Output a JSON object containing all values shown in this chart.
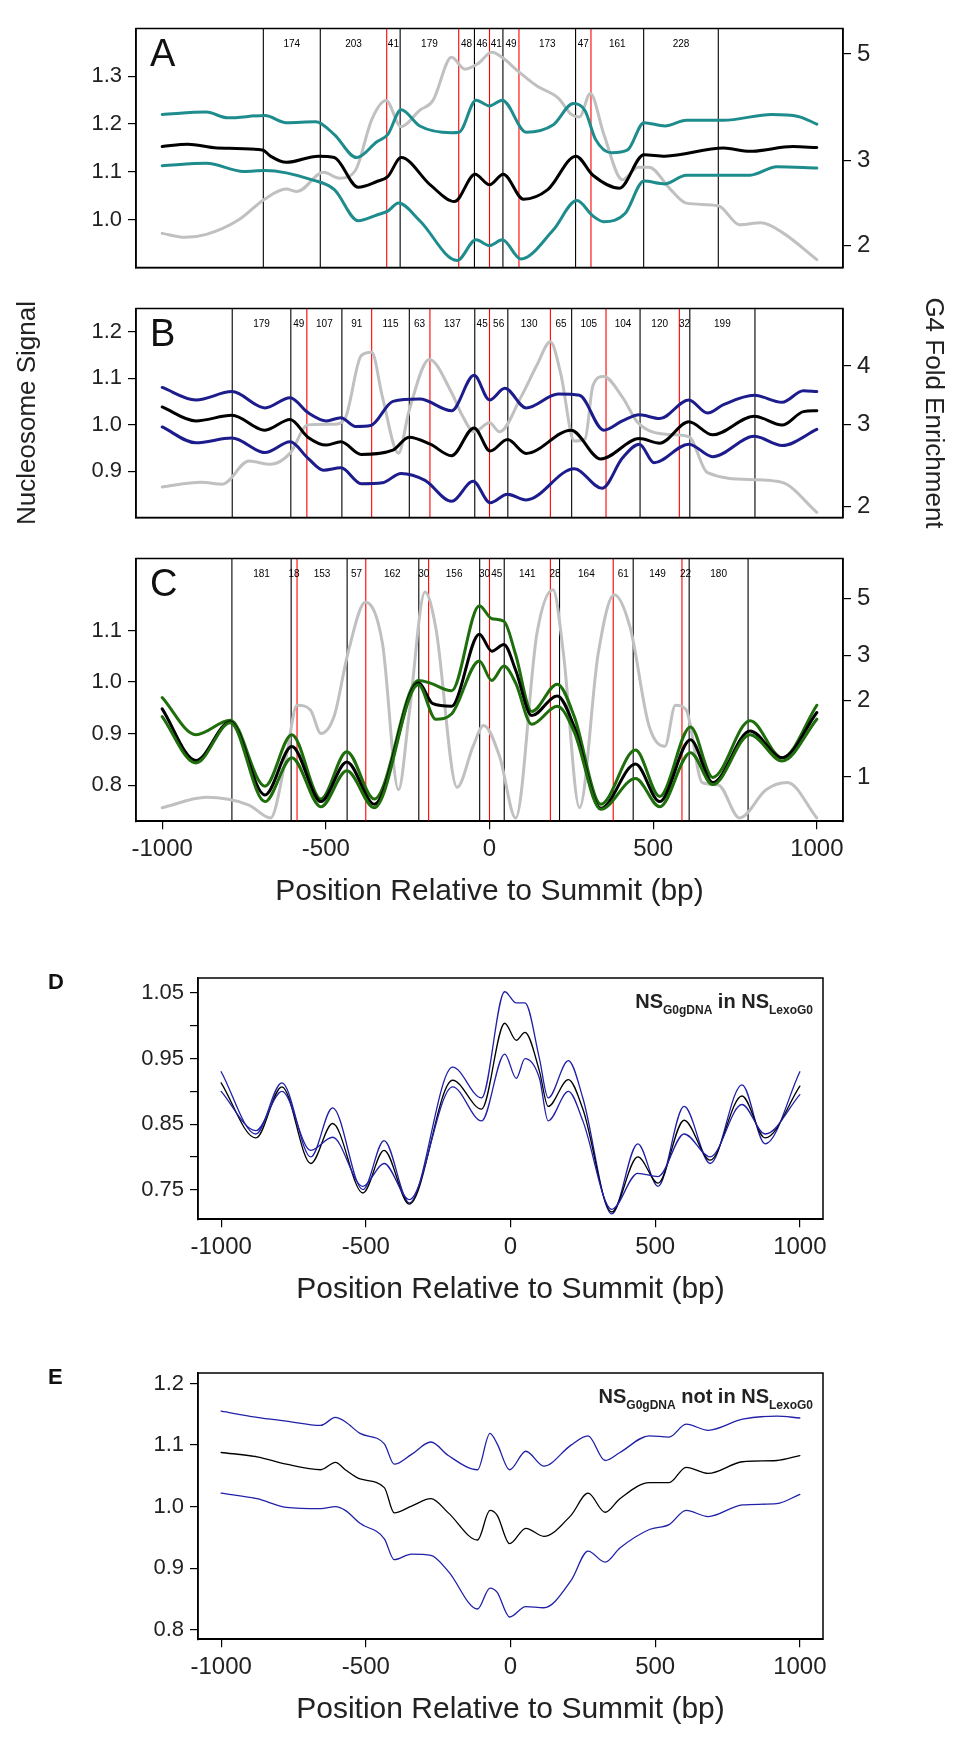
{
  "chart_data": [
    {
      "type": "line",
      "title": "A",
      "xlim": [
        -1080,
        1080
      ],
      "xticks": [
        -1000,
        -500,
        0,
        500,
        1000
      ],
      "ylim": [
        0.9,
        1.4
      ],
      "yticks": [
        {
          "value": 1,
          "label": "1.0"
        },
        1.1,
        1.2,
        1.3
      ],
      "y2lim": [
        1.8,
        5.65
      ],
      "y2ticks": [
        2,
        3,
        5
      ],
      "log": "y2",
      "tick_labels": "y",
      "series": [
        {
          "color": "#c0c0c0",
          "axis": "y2",
          "x": [
            -1000,
            -930,
            -865,
            -767,
            -686,
            -621,
            -588,
            -507,
            -458,
            -409,
            -360,
            -316,
            -270,
            -213,
            -173,
            -116,
            -75,
            -34,
            7,
            47,
            80,
            145,
            210,
            251,
            275,
            308,
            349,
            406,
            454,
            487,
            552,
            601,
            699,
            764,
            829,
            894,
            1000
          ],
          "values": [
            2.12,
            2.08,
            2.11,
            2.26,
            2.5,
            2.62,
            2.59,
            2.84,
            2.76,
            2.87,
            3.65,
            4.0,
            3.53,
            3.82,
            4.0,
            4.92,
            4.65,
            4.78,
            5.04,
            4.87,
            4.65,
            4.29,
            4.05,
            3.74,
            3.7,
            4.14,
            3.41,
            2.74,
            2.91,
            2.91,
            2.62,
            2.45,
            2.42,
            2.21,
            2.23,
            2.13,
            1.87
          ]
        },
        {
          "color": "#1e8c8c",
          "x": [
            -1000,
            -865,
            -800,
            -686,
            -621,
            -531,
            -474,
            -406,
            -344,
            -311,
            -270,
            -213,
            -116,
            -93,
            -41,
            0,
            39,
            112,
            194,
            256,
            292,
            324,
            373,
            422,
            472,
            536,
            601,
            715,
            862,
            943,
            1000
          ],
          "values": [
            1.22,
            1.225,
            1.213,
            1.218,
            1.203,
            1.205,
            1.178,
            1.13,
            1.163,
            1.178,
            1.23,
            1.196,
            1.182,
            1.183,
            1.25,
            1.238,
            1.25,
            1.183,
            1.198,
            1.243,
            1.228,
            1.168,
            1.14,
            1.146,
            1.203,
            1.196,
            1.208,
            1.208,
            1.22,
            1.216,
            1.2
          ]
        },
        {
          "color": "#000000",
          "x": [
            -1000,
            -922,
            -832,
            -694,
            -669,
            -621,
            -523,
            -474,
            -401,
            -344,
            -311,
            -270,
            -181,
            -107,
            -44,
            0,
            42,
            104,
            178,
            264,
            316,
            397,
            472,
            536,
            715,
            796,
            927,
            1000
          ],
          "values": [
            1.153,
            1.158,
            1.15,
            1.146,
            1.133,
            1.12,
            1.133,
            1.13,
            1.068,
            1.08,
            1.09,
            1.13,
            1.073,
            1.038,
            1.095,
            1.073,
            1.095,
            1.043,
            1.063,
            1.133,
            1.093,
            1.066,
            1.136,
            1.133,
            1.15,
            1.143,
            1.153,
            1.151
          ]
        },
        {
          "color": "#1e8c8c",
          "x": [
            -1000,
            -865,
            -751,
            -686,
            -539,
            -474,
            -401,
            -344,
            -311,
            -278,
            -213,
            -99,
            -41,
            0,
            39,
            96,
            194,
            267,
            316,
            349,
            414,
            472,
            536,
            601,
            796,
            878,
            1000
          ],
          "values": [
            1.113,
            1.118,
            1.101,
            1.103,
            1.083,
            1.063,
            0.998,
            1.01,
            1.018,
            1.035,
            0.998,
            0.915,
            0.958,
            0.946,
            0.958,
            0.918,
            0.978,
            1.04,
            1.008,
            0.996,
            1.013,
            1.081,
            1.075,
            1.093,
            1.093,
            1.111,
            1.108
          ]
        }
      ],
      "ref_lines": [
        {
          "axis": "x",
          "value": -691,
          "color": "#000000"
        },
        {
          "axis": "x",
          "value": -517,
          "color": "#000000"
        },
        {
          "axis": "x",
          "value": -273,
          "color": "#000000"
        },
        {
          "axis": "x",
          "value": -46,
          "color": "#000000"
        },
        {
          "axis": "x",
          "value": 41,
          "color": "#000000"
        },
        {
          "axis": "x",
          "value": 263,
          "color": "#000000"
        },
        {
          "axis": "x",
          "value": 471,
          "color": "#000000"
        },
        {
          "axis": "x",
          "value": 699,
          "color": "#000000"
        },
        {
          "axis": "x",
          "value": -314,
          "color": "#ff0000"
        },
        {
          "axis": "x",
          "value": -94,
          "color": "#ff0000"
        },
        {
          "axis": "x",
          "value": 0,
          "color": "#ff0000"
        },
        {
          "axis": "x",
          "value": 90,
          "color": "#ff0000"
        },
        {
          "axis": "x",
          "value": 310,
          "color": "#ff0000"
        }
      ],
      "annotations": [
        "174",
        "203",
        "41",
        "179",
        "48",
        "46",
        "41",
        "49",
        "173",
        "47",
        "161",
        "228"
      ]
    },
    {
      "type": "line",
      "title": "B",
      "ylabel": "Nucleosome Signal",
      "y2label": "G4 Fold Enrichment",
      "xlim": [
        -1080,
        1080
      ],
      "xticks": [
        -1000,
        -500,
        0,
        500,
        1000
      ],
      "ylim": [
        0.8,
        1.25
      ],
      "yticks": [
        0.9,
        {
          "value": 1,
          "label": "1.0"
        },
        1.1,
        1.2
      ],
      "y2lim": [
        1.89,
        5.32
      ],
      "y2ticks": [
        2,
        3,
        4
      ],
      "log": "y2",
      "tick_labels": "y",
      "series": [
        {
          "color": "#c0c0c0",
          "axis": "y2",
          "x": [
            -1000,
            -881,
            -816,
            -735,
            -669,
            -609,
            -555,
            -474,
            -441,
            -392,
            -360,
            -327,
            -278,
            -246,
            -184,
            -116,
            -83,
            -47,
            0,
            31,
            96,
            145,
            186,
            218,
            259,
            292,
            316,
            349,
            406,
            454,
            552,
            609,
            666,
            809,
            894,
            1000
          ],
          "values": [
            2.2,
            2.25,
            2.23,
            2.5,
            2.46,
            2.6,
            2.99,
            3.0,
            3.09,
            4.21,
            4.28,
            3.43,
            2.6,
            3.2,
            4.13,
            3.51,
            3.13,
            2.89,
            3.02,
            2.89,
            3.43,
            4.02,
            4.51,
            3.84,
            2.76,
            2.79,
            3.63,
            3.8,
            3.43,
            3.02,
            2.85,
            2.82,
            2.36,
            2.28,
            2.25,
            1.94
          ]
        },
        {
          "color": "#1c1c8c",
          "x": [
            -1000,
            -897,
            -787,
            -686,
            -609,
            -555,
            -498,
            -454,
            -409,
            -363,
            -295,
            -213,
            -116,
            -47,
            0,
            47,
            112,
            210,
            275,
            349,
            406,
            458,
            520,
            609,
            666,
            715,
            809,
            894,
            959,
            1000
          ],
          "values": [
            1.08,
            1.053,
            1.071,
            1.036,
            1.058,
            1.026,
            1.008,
            1.015,
            0.996,
            0.998,
            1.05,
            1.055,
            1.03,
            1.106,
            1.053,
            1.078,
            1.036,
            1.066,
            1.063,
            0.988,
            1.008,
            1.021,
            1.013,
            1.053,
            1.025,
            1.043,
            1.063,
            1.048,
            1.073,
            1.071
          ]
        },
        {
          "color": "#000000",
          "x": [
            -1000,
            -897,
            -787,
            -686,
            -609,
            -555,
            -498,
            -454,
            -392,
            -295,
            -246,
            -181,
            -116,
            -47,
            2,
            55,
            112,
            249,
            340,
            458,
            520,
            609,
            682,
            809,
            894,
            959,
            1000
          ],
          "values": [
            1.038,
            1.008,
            1.02,
            0.988,
            1.011,
            0.973,
            0.956,
            0.963,
            0.936,
            0.945,
            0.973,
            0.958,
            0.933,
            0.993,
            0.943,
            0.968,
            0.938,
            0.988,
            0.926,
            0.97,
            0.96,
            1.006,
            0.978,
            1.018,
            0.999,
            1.028,
            1.03
          ]
        },
        {
          "color": "#1c1c8c",
          "x": [
            -1000,
            -897,
            -787,
            -686,
            -609,
            -555,
            -507,
            -454,
            -392,
            -327,
            -270,
            -197,
            -116,
            -50,
            2,
            55,
            112,
            259,
            344,
            406,
            458,
            503,
            609,
            682,
            809,
            894,
            1000
          ],
          "values": [
            0.995,
            0.961,
            0.971,
            0.94,
            0.963,
            0.928,
            0.902,
            0.907,
            0.873,
            0.875,
            0.895,
            0.88,
            0.835,
            0.878,
            0.832,
            0.85,
            0.838,
            0.905,
            0.863,
            0.928,
            0.958,
            0.918,
            0.958,
            0.931,
            0.975,
            0.955,
            0.99
          ]
        }
      ],
      "ref_lines": [
        {
          "axis": "x",
          "value": -786,
          "color": "#000000"
        },
        {
          "axis": "x",
          "value": -607,
          "color": "#000000"
        },
        {
          "axis": "x",
          "value": -451,
          "color": "#000000"
        },
        {
          "axis": "x",
          "value": -245,
          "color": "#000000"
        },
        {
          "axis": "x",
          "value": -45,
          "color": "#000000"
        },
        {
          "axis": "x",
          "value": 56,
          "color": "#000000"
        },
        {
          "axis": "x",
          "value": 251,
          "color": "#000000"
        },
        {
          "axis": "x",
          "value": 460,
          "color": "#000000"
        },
        {
          "axis": "x",
          "value": 612,
          "color": "#000000"
        },
        {
          "axis": "x",
          "value": 811,
          "color": "#000000"
        },
        {
          "axis": "x",
          "value": -558,
          "color": "#ff0000"
        },
        {
          "axis": "x",
          "value": -360,
          "color": "#ff0000"
        },
        {
          "axis": "x",
          "value": -182,
          "color": "#ff0000"
        },
        {
          "axis": "x",
          "value": 0,
          "color": "#ff0000"
        },
        {
          "axis": "x",
          "value": 186,
          "color": "#ff0000"
        },
        {
          "axis": "x",
          "value": 356,
          "color": "#ff0000"
        },
        {
          "axis": "x",
          "value": 580,
          "color": "#ff0000"
        }
      ],
      "annotations": [
        "179",
        "49",
        "107",
        "91",
        "115",
        "63",
        "137",
        "45",
        "56",
        "130",
        "65",
        "105",
        "104",
        "120",
        "32",
        "199"
      ]
    },
    {
      "type": "line",
      "title": "C",
      "xlabel": "Position Relative to Summit (bp)",
      "xlim": [
        -1080,
        1080
      ],
      "xticks": [
        -1000,
        -500,
        0,
        500,
        1000
      ],
      "ylim": [
        0.73,
        1.24
      ],
      "yticks": [
        0.8,
        0.9,
        {
          "value": 1,
          "label": "1.0"
        },
        1.1
      ],
      "y2lim": [
        0.67,
        7.2
      ],
      "y2ticks": [
        1,
        2,
        3,
        5
      ],
      "log": "y2",
      "series": [
        {
          "color": "#c0c0c0",
          "axis": "y2",
          "x": [
            -1000,
            -865,
            -735,
            -669,
            -621,
            -588,
            -547,
            -515,
            -474,
            -433,
            -379,
            -327,
            -278,
            -246,
            -197,
            -164,
            -99,
            -50,
            -18,
            31,
            80,
            145,
            194,
            226,
            275,
            332,
            381,
            430,
            487,
            536,
            568,
            601,
            650,
            699,
            764,
            845,
            910,
            1000
          ],
          "values": [
            0.757,
            0.831,
            0.775,
            0.69,
            1.2,
            1.91,
            1.83,
            1.48,
            1.74,
            3.04,
            4.84,
            3.34,
            0.89,
            1.74,
            5.31,
            3.84,
            0.91,
            1.32,
            1.59,
            1.2,
            0.69,
            3.66,
            5.43,
            3.04,
            0.757,
            3.04,
            5.19,
            3.84,
            1.59,
            1.32,
            1.91,
            1.83,
            0.95,
            0.93,
            0.69,
            0.89,
            0.95,
            0.69
          ]
        },
        {
          "color": "#1e6e0c",
          "x": [
            -1000,
            -897,
            -792,
            -686,
            -604,
            -515,
            -436,
            -352,
            -217,
            -181,
            -116,
            -31,
            7,
            44,
            80,
            129,
            207,
            259,
            340,
            446,
            520,
            614,
            682,
            796,
            894,
            1000
          ],
          "values": [
            0.97,
            0.898,
            0.926,
            0.798,
            0.898,
            0.773,
            0.865,
            0.773,
            1.003,
            0.998,
            0.983,
            1.148,
            1.123,
            1.118,
            1.053,
            0.943,
            0.996,
            0.933,
            0.763,
            0.868,
            0.778,
            0.913,
            0.815,
            0.925,
            0.853,
            0.955
          ]
        },
        {
          "color": "#000000",
          "x": [
            -1000,
            -897,
            -792,
            -686,
            -604,
            -515,
            -436,
            -352,
            -217,
            -173,
            -116,
            -31,
            7,
            44,
            80,
            129,
            207,
            259,
            340,
            446,
            520,
            614,
            682,
            796,
            894,
            1000
          ],
          "values": [
            0.948,
            0.848,
            0.923,
            0.781,
            0.875,
            0.768,
            0.845,
            0.763,
            0.998,
            0.958,
            0.953,
            1.093,
            1.06,
            1.073,
            1.023,
            0.935,
            0.973,
            0.913,
            0.755,
            0.841,
            0.768,
            0.888,
            0.805,
            0.905,
            0.853,
            0.941
          ]
        },
        {
          "color": "#1e6e0c",
          "x": [
            -1000,
            -897,
            -792,
            -686,
            -604,
            -515,
            -436,
            -352,
            -217,
            -164,
            -116,
            -31,
            7,
            44,
            80,
            129,
            207,
            259,
            340,
            446,
            520,
            614,
            682,
            796,
            894,
            1000
          ],
          "values": [
            0.933,
            0.843,
            0.921,
            0.768,
            0.853,
            0.758,
            0.828,
            0.756,
            0.995,
            0.928,
            0.938,
            1.041,
            1.003,
            1.031,
            0.998,
            0.918,
            0.953,
            0.903,
            0.753,
            0.813,
            0.758,
            0.863,
            0.801,
            0.898,
            0.847,
            0.928
          ]
        }
      ],
      "ref_lines": [
        {
          "axis": "x",
          "value": -787,
          "color": "#000000"
        },
        {
          "axis": "x",
          "value": -606,
          "color": "#000000"
        },
        {
          "axis": "x",
          "value": -435,
          "color": "#000000"
        },
        {
          "axis": "x",
          "value": -216,
          "color": "#000000"
        },
        {
          "axis": "x",
          "value": -30,
          "color": "#000000"
        },
        {
          "axis": "x",
          "value": 45,
          "color": "#000000"
        },
        {
          "axis": "x",
          "value": 214,
          "color": "#000000"
        },
        {
          "axis": "x",
          "value": 439,
          "color": "#000000"
        },
        {
          "axis": "x",
          "value": 610,
          "color": "#000000"
        },
        {
          "axis": "x",
          "value": 790,
          "color": "#000000"
        },
        {
          "axis": "x",
          "value": -588,
          "color": "#ff0000"
        },
        {
          "axis": "x",
          "value": -378,
          "color": "#ff0000"
        },
        {
          "axis": "x",
          "value": -186,
          "color": "#ff0000"
        },
        {
          "axis": "x",
          "value": 0,
          "color": "#ff0000"
        },
        {
          "axis": "x",
          "value": 186,
          "color": "#ff0000"
        },
        {
          "axis": "x",
          "value": 378,
          "color": "#ff0000"
        },
        {
          "axis": "x",
          "value": 588,
          "color": "#ff0000"
        }
      ],
      "annotations": [
        "181",
        "18",
        "153",
        "57",
        "162",
        "30",
        "156",
        "30",
        "45",
        "141",
        "28",
        "164",
        "61",
        "149",
        "22",
        "180"
      ]
    },
    {
      "type": "line",
      "title": "D",
      "xlabel": "Position Relative to Summit (bp)",
      "xlim": [
        -1080,
        1080
      ],
      "xticks": [
        -1000,
        -500,
        0,
        500,
        1000
      ],
      "ylim": [
        0.705,
        1.073
      ],
      "yticks": [
        0.75,
        {
          "value": 0.8,
          "label": null
        },
        0.85,
        {
          "value": 0.9,
          "label": null
        },
        0.95,
        {
          "value": 1,
          "label": null
        },
        1.05
      ],
      "annotations": [
        "NS$_{G0gDNA}$ in NS$_{LexoG0}$"
      ],
      "series": [
        {
          "color": "#2020a8",
          "x": [
            -1000,
            -880,
            -790,
            -690,
            -615,
            -510,
            -437,
            -350,
            -200,
            -100,
            -20,
            20,
            50,
            100,
            130,
            200,
            250,
            350,
            440,
            510,
            600,
            690,
            800,
            880,
            1000
          ],
          "values": [
            0.93,
            0.835,
            0.913,
            0.8,
            0.875,
            0.75,
            0.825,
            0.73,
            0.937,
            0.89,
            1.052,
            1.035,
            1.035,
            0.95,
            0.89,
            0.947,
            0.89,
            0.713,
            0.82,
            0.755,
            0.877,
            0.79,
            0.91,
            0.82,
            0.93
          ]
        },
        {
          "color": "#000000",
          "x": [
            -1000,
            -880,
            -790,
            -690,
            -615,
            -510,
            -437,
            -350,
            -200,
            -100,
            -20,
            20,
            50,
            100,
            130,
            200,
            250,
            350,
            440,
            510,
            600,
            690,
            800,
            880,
            1000
          ],
          "values": [
            0.913,
            0.829,
            0.907,
            0.79,
            0.851,
            0.745,
            0.81,
            0.728,
            0.917,
            0.873,
            1.004,
            0.978,
            0.99,
            0.931,
            0.877,
            0.918,
            0.873,
            0.716,
            0.8,
            0.76,
            0.856,
            0.795,
            0.893,
            0.829,
            0.908
          ]
        },
        {
          "color": "#2020a8",
          "x": [
            -1000,
            -880,
            -790,
            -690,
            -615,
            -510,
            -437,
            -350,
            -200,
            -100,
            -20,
            20,
            50,
            100,
            130,
            200,
            250,
            350,
            440,
            510,
            600,
            690,
            800,
            880,
            1000
          ],
          "values": [
            0.9,
            0.84,
            0.9,
            0.81,
            0.83,
            0.755,
            0.79,
            0.735,
            0.907,
            0.855,
            0.957,
            0.92,
            0.95,
            0.92,
            0.855,
            0.9,
            0.855,
            0.72,
            0.775,
            0.77,
            0.835,
            0.8,
            0.88,
            0.835,
            0.895
          ]
        }
      ]
    },
    {
      "type": "line",
      "title": "E",
      "xlabel": "Position Relative to Summit (bp)",
      "xlim": [
        -1080,
        1080
      ],
      "xticks": [
        -1000,
        -500,
        0,
        500,
        1000
      ],
      "ylim": [
        0.785,
        1.217
      ],
      "yticks": [
        0.8,
        0.9,
        {
          "value": 1,
          "label": "1.0"
        },
        1.1,
        1.2
      ],
      "annotations": [
        "NS$_{G0gDNA}$ not in NS$_{LexoG0}$"
      ],
      "series": [
        {
          "color": "#2020a8",
          "x": [
            -1000,
            -876,
            -775,
            -656,
            -605,
            -571,
            -520,
            -436,
            -402,
            -342,
            -275,
            -215,
            -114,
            -71,
            -46,
            -3,
            53,
            115,
            209,
            268,
            327,
            378,
            480,
            548,
            607,
            683,
            802,
            920,
            1000
          ],
          "values": [
            1.155,
            1.145,
            1.139,
            1.132,
            1.145,
            1.138,
            1.119,
            1.102,
            1.069,
            1.085,
            1.105,
            1.083,
            1.06,
            1.119,
            1.102,
            1.06,
            1.09,
            1.066,
            1.1,
            1.115,
            1.075,
            1.088,
            1.115,
            1.113,
            1.134,
            1.124,
            1.142,
            1.147,
            1.144
          ]
        },
        {
          "color": "#000000",
          "x": [
            -1000,
            -876,
            -775,
            -656,
            -605,
            -571,
            -520,
            -436,
            -402,
            -342,
            -275,
            -215,
            -114,
            -71,
            -46,
            -3,
            53,
            115,
            209,
            268,
            327,
            378,
            480,
            548,
            607,
            683,
            802,
            920,
            1000
          ],
          "values": [
            1.088,
            1.081,
            1.069,
            1.06,
            1.072,
            1.06,
            1.045,
            1.031,
            0.99,
            1.001,
            1.013,
            0.99,
            0.946,
            0.994,
            0.986,
            0.94,
            0.965,
            0.952,
            0.986,
            1.022,
            0.991,
            1.013,
            1.039,
            1.039,
            1.064,
            1.054,
            1.073,
            1.075,
            1.083
          ]
        },
        {
          "color": "#2020a8",
          "x": [
            -1000,
            -876,
            -775,
            -656,
            -605,
            -571,
            -520,
            -436,
            -402,
            -342,
            -275,
            -215,
            -114,
            -71,
            -46,
            -3,
            53,
            115,
            209,
            268,
            327,
            378,
            480,
            548,
            607,
            683,
            802,
            920,
            1000
          ],
          "values": [
            1.022,
            1.013,
            0.999,
            0.997,
            1.0,
            0.994,
            0.973,
            0.948,
            0.914,
            0.923,
            0.921,
            0.895,
            0.834,
            0.868,
            0.861,
            0.821,
            0.838,
            0.836,
            0.88,
            0.928,
            0.91,
            0.933,
            0.963,
            0.971,
            0.994,
            0.984,
            1.003,
            1.005,
            1.02
          ]
        }
      ]
    }
  ]
}
